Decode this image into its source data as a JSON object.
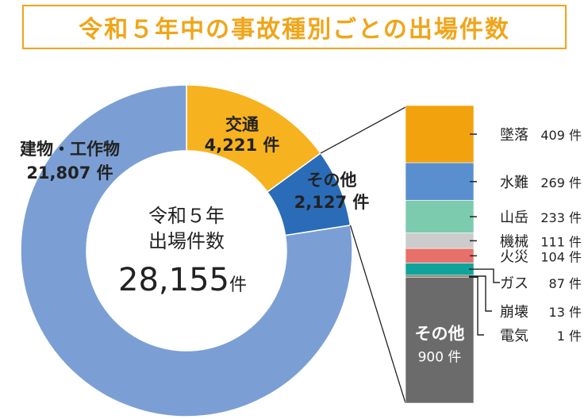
{
  "title": "令和５年中の事故種別ごとの出場件数",
  "unit": "件",
  "center": {
    "line1": "令和５年",
    "line2": "出場件数",
    "total": "28,155",
    "unit": "件"
  },
  "chart_data": [
    {
      "type": "pie",
      "title": "令和５年中の事故種別ごとの出場件数",
      "categories": [
        "交通",
        "その他",
        "建物・工作物"
      ],
      "values": [
        4221,
        2127,
        21807
      ],
      "value_labels": [
        "4,221 件",
        "2,127 件",
        "21,807 件"
      ],
      "colors": [
        "#f7b21f",
        "#2b6cb8",
        "#7b9fd4"
      ],
      "total": 28155
    },
    {
      "type": "bar",
      "stacked": true,
      "title": "",
      "categories": [
        "墜落",
        "水難",
        "山岳",
        "機械",
        "火災",
        "ガス",
        "崩壊",
        "電気",
        "その他"
      ],
      "values": [
        409,
        269,
        233,
        111,
        104,
        87,
        13,
        1,
        900
      ],
      "value_labels": [
        "409 件",
        "269 件",
        "233 件",
        "111 件",
        "104 件",
        "87 件",
        "13 件",
        "1 件",
        "900 件"
      ],
      "colors": [
        "#f2a20c",
        "#5a8fcf",
        "#7ccbaf",
        "#cccccc",
        "#e8706a",
        "#10a39c",
        "#8c6a46",
        "#f2c28a",
        "#6b6b6b"
      ],
      "total": 2127
    }
  ]
}
